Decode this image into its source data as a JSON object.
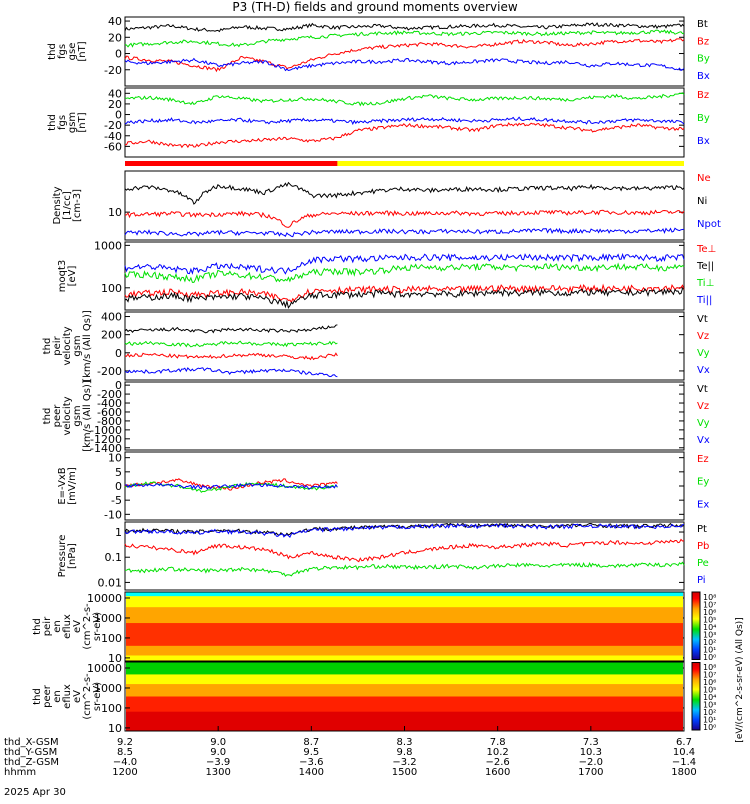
{
  "title": "P3 (TH-D) fields and ground moments overview",
  "colors": {
    "black": "#000000",
    "red": "#ff0000",
    "green": "#00e000",
    "blue": "#0000ff",
    "yellow": "#ffff00",
    "cyan": "#00ffff"
  },
  "chart_data": [
    {
      "type": "line",
      "ylabel": [
        "thd",
        "fgs",
        "gse",
        "[nT]"
      ],
      "ylim": [
        -40,
        45
      ],
      "yticks": [
        40,
        20,
        0,
        -20
      ],
      "series": [
        {
          "name": "Bt",
          "color": "black",
          "values": [
            30,
            32,
            34,
            30,
            28,
            33,
            31,
            30,
            35,
            32,
            33,
            34,
            31,
            32,
            33,
            34,
            35,
            33,
            32,
            34,
            36,
            35,
            34,
            33,
            35
          ]
        },
        {
          "name": "Bz",
          "color": "red",
          "values": [
            -5,
            -8,
            -10,
            -15,
            -20,
            -5,
            -10,
            -18,
            -8,
            0,
            5,
            8,
            10,
            12,
            10,
            8,
            12,
            15,
            14,
            10,
            12,
            15,
            16,
            14,
            18
          ]
        },
        {
          "name": "By",
          "color": "green",
          "values": [
            10,
            12,
            14,
            15,
            12,
            10,
            15,
            18,
            20,
            22,
            24,
            25,
            26,
            25,
            24,
            25,
            26,
            25,
            24,
            25,
            26,
            25,
            26,
            27,
            25
          ]
        },
        {
          "name": "Bx",
          "color": "blue",
          "values": [
            -10,
            -12,
            -10,
            -8,
            -15,
            -12,
            -10,
            -20,
            -15,
            -12,
            -10,
            -10,
            -8,
            -10,
            -12,
            -10,
            -8,
            -10,
            -12,
            -10,
            -15,
            -12,
            -14,
            -15,
            -20
          ]
        }
      ]
    },
    {
      "type": "line",
      "ylabel": [
        "thd",
        "fgs",
        "gsm",
        "[nT]"
      ],
      "ylim": [
        -80,
        50
      ],
      "yticks": [
        40,
        20,
        0,
        -20,
        -40,
        -60
      ],
      "series": [
        {
          "name": "Bz",
          "color": "red",
          "values": [
            -55,
            -50,
            -58,
            -60,
            -52,
            -50,
            -48,
            -45,
            -50,
            -45,
            -30,
            -25,
            -20,
            -22,
            -25,
            -30,
            -20,
            -18,
            -20,
            -25,
            -30,
            -25,
            -20,
            -25,
            -28
          ]
        },
        {
          "name": "By",
          "color": "green",
          "values": [
            30,
            32,
            28,
            20,
            35,
            30,
            25,
            28,
            30,
            25,
            20,
            22,
            30,
            35,
            30,
            28,
            30,
            32,
            30,
            28,
            32,
            35,
            30,
            34,
            40
          ]
        },
        {
          "name": "Bx",
          "color": "blue",
          "values": [
            -15,
            -12,
            -10,
            -15,
            -12,
            -10,
            -15,
            -12,
            -10,
            -12,
            -15,
            -12,
            -10,
            -8,
            -10,
            -12,
            -10,
            -8,
            -10,
            -12,
            -15,
            -12,
            -10,
            -12,
            -15
          ]
        }
      ]
    },
    {
      "type": "line",
      "ylabel": [
        "Density",
        "[1/cc]",
        "[cm-3]"
      ],
      "ylog": true,
      "ylim": [
        1,
        300
      ],
      "yticks": [
        10
      ],
      "series": [
        {
          "name": "Ne",
          "color": "red",
          "values": [
            8,
            8.5,
            9,
            8,
            8.5,
            9,
            8,
            3,
            8,
            9,
            9,
            9.5,
            9,
            9,
            9.5,
            9,
            9,
            9.5,
            10,
            9.5,
            10,
            10,
            9.5,
            10,
            10
          ]
        },
        {
          "name": "Ni",
          "color": "black",
          "values": [
            70,
            80,
            60,
            20,
            90,
            70,
            50,
            100,
            40,
            40,
            50,
            60,
            70,
            60,
            65,
            70,
            65,
            70,
            75,
            70,
            80,
            75,
            70,
            75,
            80
          ]
        },
        {
          "name": "Npot",
          "color": "blue",
          "values": [
            1.8,
            1.9,
            1.7,
            1.6,
            1.9,
            1.8,
            1.8,
            1.5,
            1.9,
            2,
            2,
            2.1,
            2,
            2,
            2.1,
            2,
            2,
            2.1,
            2.2,
            2.1,
            2.2,
            2.1,
            2.1,
            2.2,
            2.3
          ]
        }
      ]
    },
    {
      "type": "line",
      "ylabel": [
        "moqt3",
        "[eV]"
      ],
      "ylog": true,
      "ylim": [
        30,
        1200
      ],
      "yticks": [
        1000,
        100
      ],
      "series": [
        {
          "name": "Te⊥",
          "color": "red",
          "values": [
            70,
            75,
            80,
            70,
            75,
            80,
            70,
            50,
            85,
            90,
            90,
            95,
            90,
            95,
            90,
            95,
            100,
            95,
            100,
            95,
            100,
            95,
            100,
            100,
            105
          ]
        },
        {
          "name": "Te||",
          "color": "black",
          "values": [
            55,
            60,
            65,
            55,
            60,
            65,
            55,
            40,
            65,
            70,
            70,
            75,
            70,
            75,
            70,
            75,
            80,
            75,
            80,
            75,
            80,
            75,
            80,
            80,
            85
          ]
        },
        {
          "name": "Ti⊥",
          "color": "green",
          "values": [
            200,
            210,
            180,
            160,
            220,
            200,
            180,
            150,
            230,
            250,
            240,
            260,
            300,
            310,
            300,
            320,
            310,
            300,
            320,
            310,
            300,
            320,
            310,
            300,
            320
          ]
        },
        {
          "name": "Ti||",
          "color": "blue",
          "values": [
            300,
            320,
            280,
            250,
            330,
            300,
            280,
            250,
            450,
            500,
            480,
            500,
            520,
            530,
            520,
            510,
            520,
            530,
            520,
            510,
            520,
            530,
            520,
            510,
            520
          ]
        }
      ]
    },
    {
      "type": "line",
      "ylabel": [
        "thd",
        "peir",
        "velocity",
        "gsm",
        "[km/s (All Qs)]"
      ],
      "ylim": [
        -300,
        450
      ],
      "yticks": [
        400,
        200,
        0,
        -200
      ],
      "series": [
        {
          "name": "Vt",
          "color": "black",
          "values": [
            240,
            250,
            260,
            230,
            260,
            250,
            240,
            250,
            300
          ]
        },
        {
          "name": "Vz",
          "color": "red",
          "values": [
            -30,
            -20,
            -40,
            -50,
            -30,
            -20,
            -40,
            -60,
            -20
          ]
        },
        {
          "name": "Vy",
          "color": "green",
          "values": [
            100,
            110,
            90,
            80,
            120,
            100,
            90,
            100,
            110
          ]
        },
        {
          "name": "Vx",
          "color": "blue",
          "values": [
            -200,
            -210,
            -190,
            -180,
            -220,
            -200,
            -190,
            -230,
            -250
          ]
        }
      ]
    },
    {
      "type": "line",
      "ylabel": [
        "thd",
        "peer",
        "velocity",
        "gsm",
        "[km/s (All Qs)]"
      ],
      "ylim": [
        -1450,
        70
      ],
      "yticks": [
        0,
        -200,
        -400,
        -600,
        -800,
        -1000,
        -1200,
        -1400
      ],
      "series": [
        {
          "name": "Vt",
          "color": "black",
          "values": []
        },
        {
          "name": "Vz",
          "color": "red",
          "values": []
        },
        {
          "name": "Vy",
          "color": "green",
          "values": []
        },
        {
          "name": "Vx",
          "color": "blue",
          "values": []
        }
      ]
    },
    {
      "type": "line",
      "ylabel": [
        "E=-VxB",
        "[mV/m]"
      ],
      "ylim": [
        -12,
        12
      ],
      "yticks": [
        10,
        5,
        0,
        -5,
        -10
      ],
      "series": [
        {
          "name": "Ez",
          "color": "red",
          "values": [
            0,
            1,
            2,
            0,
            -1,
            1,
            2,
            0,
            1
          ]
        },
        {
          "name": "Ey",
          "color": "green",
          "values": [
            0,
            1,
            0,
            -2,
            0,
            1,
            0,
            -1,
            0
          ]
        },
        {
          "name": "Ex",
          "color": "blue",
          "values": [
            0,
            0.5,
            0,
            -0.5,
            0,
            0.5,
            0,
            -0.5,
            0
          ]
        }
      ]
    },
    {
      "type": "line",
      "ylabel": [
        "Pressure",
        "[nPa]"
      ],
      "ylog": true,
      "ylim": [
        0.005,
        2.5
      ],
      "yticks": [
        1.0,
        0.1,
        0.01
      ],
      "series": [
        {
          "name": "Pt",
          "color": "black",
          "values": [
            1.1,
            1.2,
            1.1,
            1.0,
            1.2,
            1.1,
            1.0,
            0.8,
            1.3,
            1.4,
            1.5,
            1.6,
            1.7,
            1.8,
            1.9,
            1.8,
            1.9,
            1.8,
            1.7,
            1.8,
            1.9,
            1.8,
            1.7,
            1.8,
            1.9
          ]
        },
        {
          "name": "Pb",
          "color": "red",
          "values": [
            0.3,
            0.25,
            0.2,
            0.15,
            0.3,
            0.25,
            0.2,
            0.1,
            0.15,
            0.1,
            0.08,
            0.1,
            0.15,
            0.2,
            0.25,
            0.3,
            0.25,
            0.3,
            0.35,
            0.3,
            0.35,
            0.4,
            0.35,
            0.4,
            0.45
          ]
        },
        {
          "name": "Pe",
          "color": "green",
          "values": [
            0.03,
            0.03,
            0.035,
            0.03,
            0.03,
            0.035,
            0.03,
            0.02,
            0.035,
            0.04,
            0.04,
            0.045,
            0.04,
            0.04,
            0.045,
            0.04,
            0.045,
            0.05,
            0.045,
            0.05,
            0.05,
            0.045,
            0.05,
            0.05,
            0.055
          ]
        },
        {
          "name": "Pi",
          "color": "blue",
          "values": [
            1.0,
            1.1,
            1.0,
            0.9,
            1.1,
            1.0,
            0.9,
            0.7,
            1.2,
            1.3,
            1.4,
            1.5,
            1.6,
            1.7,
            1.8,
            1.7,
            1.8,
            1.7,
            1.6,
            1.7,
            1.8,
            1.7,
            1.6,
            1.7,
            1.8
          ]
        }
      ]
    },
    {
      "type": "heatmap",
      "ylabel": [
        "thd",
        "peir",
        "en",
        "eflux",
        "eV",
        "(cm^2-s-",
        "sr-eV)"
      ],
      "ylog": true,
      "ylim": [
        7,
        20000
      ],
      "yticks": [
        10000,
        1000,
        100,
        10
      ]
    },
    {
      "type": "heatmap",
      "ylabel": [
        "thd",
        "peer",
        "en",
        "eflux",
        "eV",
        "(cm^2-s-",
        "sr-eV)"
      ],
      "ylog": true,
      "ylim": [
        7,
        20000
      ],
      "yticks": [
        10000,
        1000,
        100,
        10
      ]
    }
  ],
  "colorbar": {
    "labels": [
      "10⁸",
      "10⁷",
      "10⁶",
      "10⁵",
      "10⁴",
      "10³",
      "10²",
      "10¹",
      "10⁰"
    ],
    "units": "[eV/(cm^2-s-sr-eV)]",
    "units2": "[eV/(cm^2-s-sr-eV) (All Qs)]"
  },
  "status_bar": {
    "segments": [
      {
        "from": 0,
        "to": 0.38,
        "color": "red"
      },
      {
        "from": 0.38,
        "to": 1.0,
        "color": "yellow"
      }
    ]
  },
  "xaxis": {
    "rows": [
      {
        "label": "thd_X-GSM",
        "values": [
          "9.2",
          "9.0",
          "8.7",
          "8.3",
          "7.8",
          "7.3",
          "6.7"
        ]
      },
      {
        "label": "thd_Y-GSM",
        "values": [
          "8.5",
          "9.0",
          "9.5",
          "9.8",
          "10.2",
          "10.3",
          "10.4"
        ]
      },
      {
        "label": "thd_Z-GSM",
        "values": [
          "−4.0",
          "−3.9",
          "−3.6",
          "−3.2",
          "−2.6",
          "−2.0",
          "−1.4"
        ]
      },
      {
        "label": "hhmm",
        "values": [
          "1200",
          "1300",
          "1400",
          "1500",
          "1600",
          "1700",
          "1800"
        ]
      }
    ],
    "date": "2025 Apr 30"
  }
}
